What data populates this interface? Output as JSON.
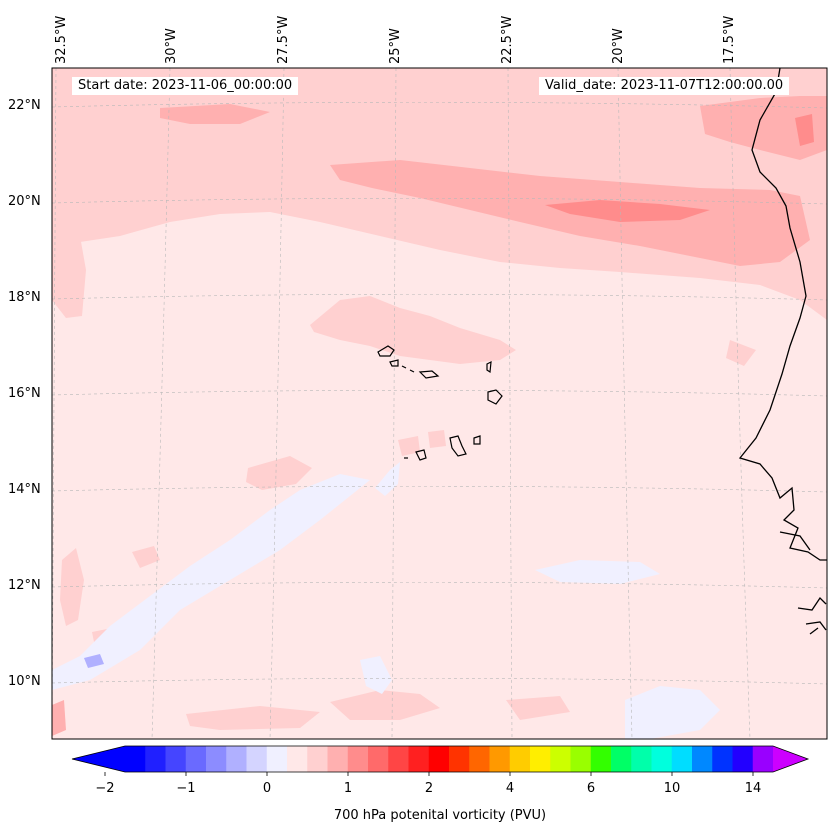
{
  "header": {
    "start_date": "Start date: 2023-11-06_00:00:00",
    "valid_date": "Valid_date: 2023-11-07T12:00:00.00"
  },
  "axes": {
    "longitude_labels": [
      "32.5°W",
      "30°W",
      "27.5°W",
      "25°W",
      "22.5°W",
      "20°W",
      "17.5°W"
    ],
    "latitude_labels": [
      "22°N",
      "20°N",
      "18°N",
      "16°N",
      "14°N",
      "12°N",
      "10°N"
    ]
  },
  "colorbar": {
    "title": "700 hPa potenital vorticity (PVU)",
    "tick_labels": [
      "−2",
      "−1",
      "0",
      "1",
      "2",
      "4",
      "6",
      "10",
      "14"
    ],
    "colors": [
      "#0000ff",
      "#2020ff",
      "#4545ff",
      "#6a6aff",
      "#8c8cff",
      "#b0b0ff",
      "#d4d4ff",
      "#f0f0ff",
      "#ffe8e8",
      "#ffd0d0",
      "#ffb0b0",
      "#ff8c8c",
      "#ff6a6a",
      "#ff4545",
      "#ff2020",
      "#ff0000",
      "#ff3300",
      "#ff6600",
      "#ff9900",
      "#ffcc00",
      "#ffee00",
      "#ccff00",
      "#99ff00",
      "#33ff00",
      "#00ff66",
      "#00ffaa",
      "#00ffdd",
      "#00ddff",
      "#0088ff",
      "#0033ff",
      "#2200ff",
      "#9900ff"
    ],
    "under_color": "#0000ff",
    "over_color": "#cc00ff"
  },
  "map": {
    "background_color": "#ffe8e8",
    "light_pink": "#ffd0d0",
    "mid_pink": "#ffb0b0",
    "deep_pink": "#ff8c8c",
    "pale_blue": "#f0f0ff",
    "light_blue": "#d4d4ff",
    "blue": "#b0b0ff"
  }
}
